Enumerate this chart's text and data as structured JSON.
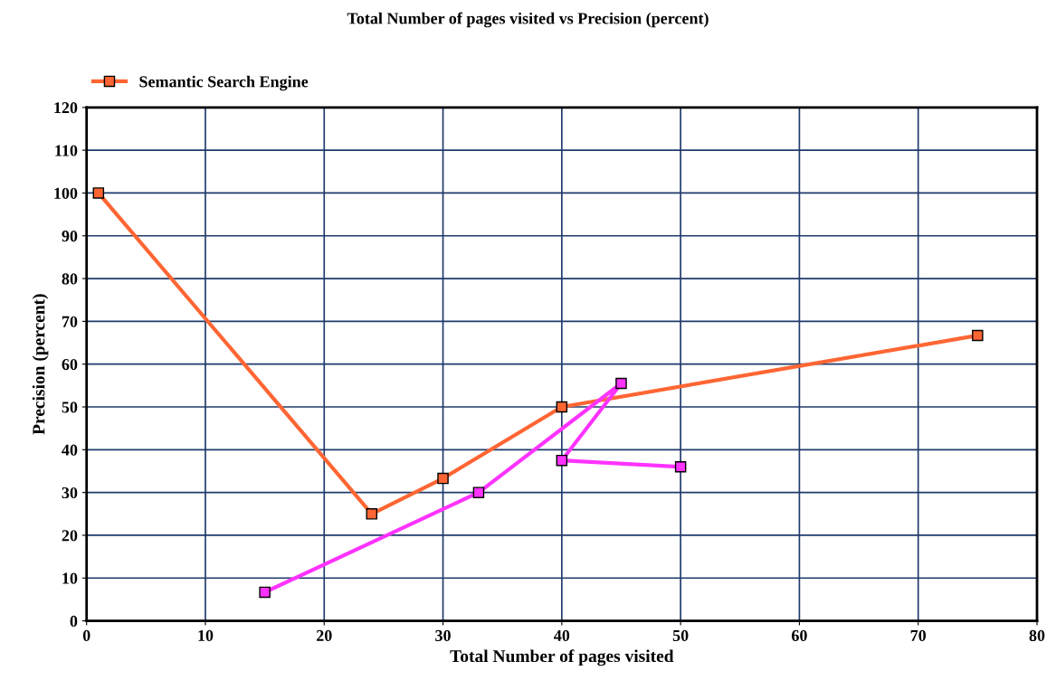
{
  "chart_data": {
    "type": "line",
    "title": "Total Number of pages visited vs Precision (percent)",
    "xlabel": "Total Number of pages visited",
    "ylabel": "Precision (percent)",
    "series": [
      {
        "name": "Semantic Search Engine",
        "color": "#ff6633",
        "x": [
          1,
          24,
          30,
          40,
          75
        ],
        "values": [
          100,
          25,
          33.3,
          50,
          66.7
        ]
      },
      {
        "color": "#ff33ff",
        "x": [
          15,
          33,
          45,
          40,
          50
        ],
        "values": [
          6.7,
          30,
          55.5,
          37.5,
          36
        ]
      }
    ],
    "xlim": [
      0,
      80
    ],
    "xticks": [
      0,
      10,
      20,
      30,
      40,
      50,
      60,
      70,
      80
    ],
    "ylim": [
      0,
      120
    ],
    "yticks": [
      0,
      10,
      20,
      30,
      40,
      50,
      60,
      70,
      80,
      90,
      100,
      110,
      120
    ],
    "grid": true,
    "legend": "top left",
    "marker": "square",
    "line_style": "solid"
  }
}
